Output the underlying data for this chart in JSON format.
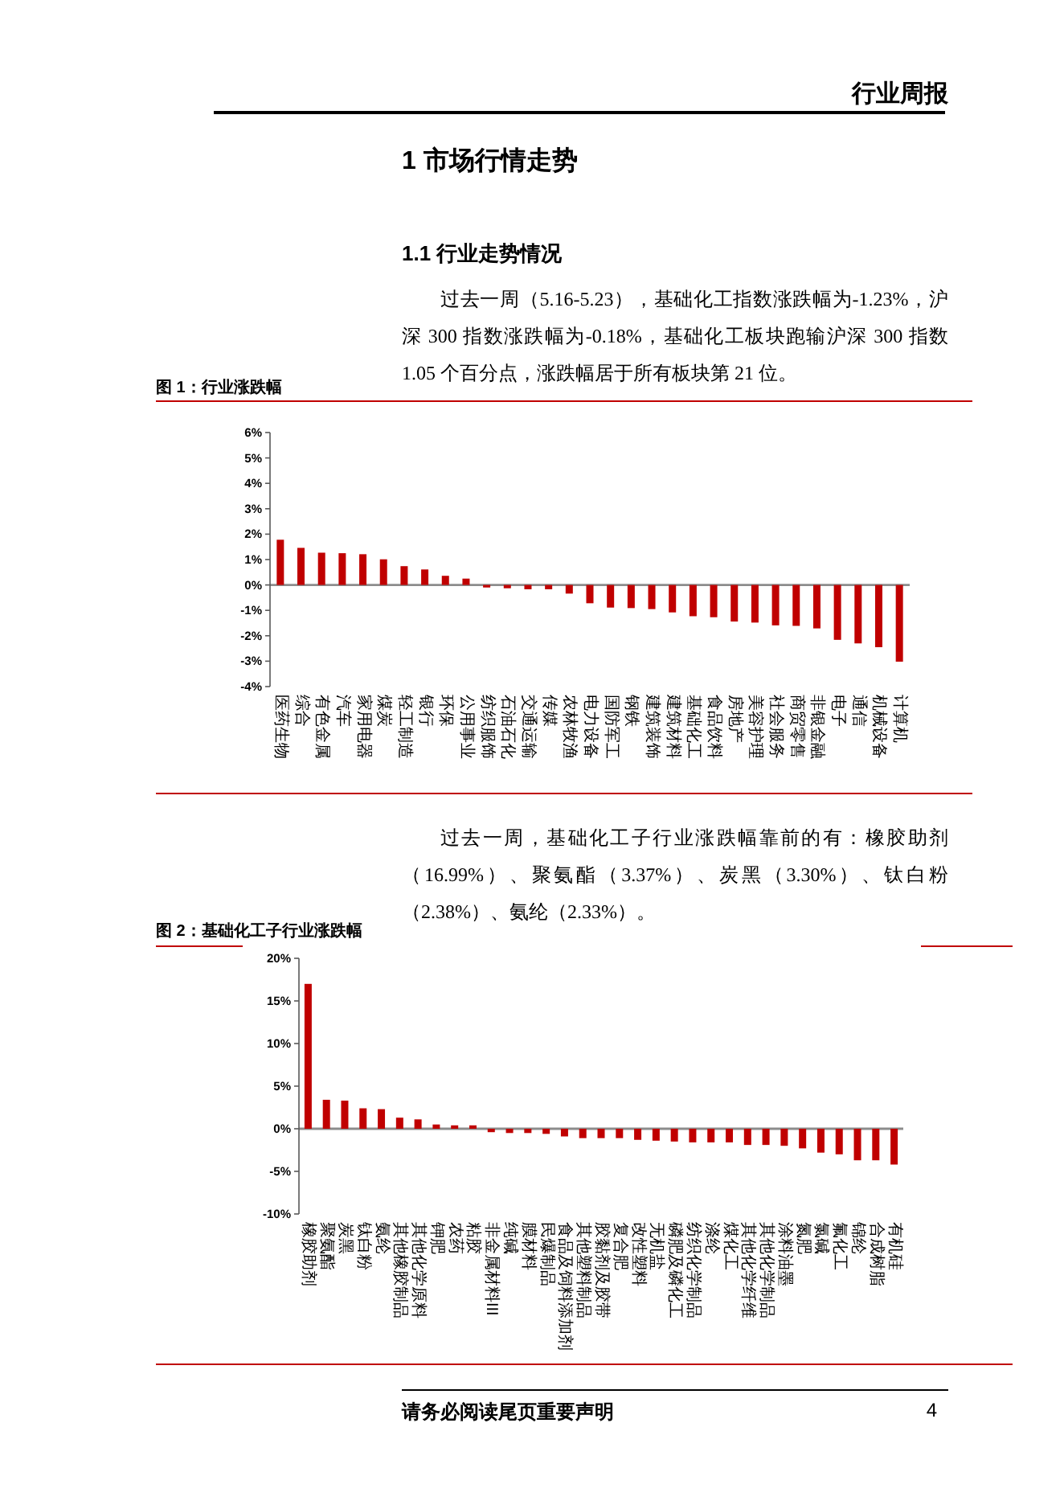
{
  "chart_data": [
    {
      "type": "bar",
      "title": "图 1：行业涨跌幅",
      "categories": [
        "医药生物",
        "综合",
        "有色金属",
        "汽车",
        "家用电器",
        "煤炭",
        "轻工制造",
        "银行",
        "环保",
        "公用事业",
        "纺织服饰",
        "石油石化",
        "交通运输",
        "传媒",
        "农林牧渔",
        "电力设备",
        "国防军工",
        "钢铁",
        "建筑装饰",
        "建筑材料",
        "基础化工",
        "食品饮料",
        "房地产",
        "美容护理",
        "社会服务",
        "商贸零售",
        "非银金融",
        "电子",
        "通信",
        "机械设备",
        "计算机"
      ],
      "values": [
        1.78,
        1.46,
        1.27,
        1.25,
        1.21,
        1.01,
        0.74,
        0.61,
        0.36,
        0.25,
        -0.1,
        -0.13,
        -0.17,
        -0.17,
        -0.34,
        -0.72,
        -0.89,
        -0.91,
        -0.95,
        -1.08,
        -1.23,
        -1.27,
        -1.44,
        -1.48,
        -1.59,
        -1.61,
        -1.71,
        -2.16,
        -2.3,
        -2.45,
        -3.02
      ],
      "color": "#c00000",
      "ylim": [
        -4,
        6
      ],
      "yticks": [
        {
          "value": -4,
          "label": "-4%"
        },
        {
          "value": -3,
          "label": "-3%"
        },
        {
          "value": -2,
          "label": "-2%"
        },
        {
          "value": -1,
          "label": "-1%"
        },
        {
          "value": 0,
          "label": "0%"
        },
        {
          "value": 1,
          "label": "1%"
        },
        {
          "value": 2,
          "label": "2%"
        },
        {
          "value": 3,
          "label": "3%"
        },
        {
          "value": 4,
          "label": "4%"
        },
        {
          "value": 5,
          "label": "5%"
        },
        {
          "value": 6,
          "label": "6%"
        }
      ],
      "annotations": [
        "行业周报",
        "1 市场行情走势",
        "1.1 行业走势情况",
        "过去一周（5.16-5.23），基础化工指数涨跌幅为-1.23%，沪深 300 指数涨跌幅为-0.18%，基础化工板块跑输沪深 300 指数 1.05 个百分点，涨跌幅居于所有板块第 21 位。"
      ]
    },
    {
      "type": "bar",
      "title": "图 2：基础化工子行业涨跌幅",
      "categories": [
        "橡胶助剂",
        "聚氨酯",
        "炭黑",
        "钛白粉",
        "氨纶",
        "其他橡胶制品",
        "其他化学原料",
        "钾肥",
        "农药",
        "粘胶",
        "非金属材料III",
        "纯碱",
        "膜材料",
        "民爆制品",
        "食品及饲料添加剂",
        "其他塑料制品",
        "胶黏剂及胶带",
        "复合肥",
        "改性塑料",
        "无机盐",
        "磷肥及磷化工",
        "纺织化学制品",
        "涤纶",
        "煤化工",
        "其他化学纤维",
        "其他化学制品",
        "涂料油墨",
        "氮肥",
        "氯碱",
        "氟化工",
        "锦纶",
        "合成树脂",
        "有机硅"
      ],
      "values": [
        17.0,
        3.4,
        3.3,
        2.4,
        2.3,
        1.3,
        1.1,
        0.5,
        0.4,
        0.4,
        -0.4,
        -0.5,
        -0.5,
        -0.6,
        -0.9,
        -1.1,
        -1.1,
        -1.1,
        -1.3,
        -1.4,
        -1.5,
        -1.6,
        -1.6,
        -1.6,
        -1.9,
        -1.9,
        -2.0,
        -2.3,
        -2.8,
        -3.0,
        -3.7,
        -3.7,
        -4.2
      ],
      "color": "#c00000",
      "ylim": [
        -10,
        20
      ],
      "yticks": [
        {
          "value": -10,
          "label": "-10%"
        },
        {
          "value": -5,
          "label": "-5%"
        },
        {
          "value": 0,
          "label": "0%"
        },
        {
          "value": 5,
          "label": "5%"
        },
        {
          "value": 10,
          "label": "10%"
        },
        {
          "value": 15,
          "label": "15%"
        },
        {
          "value": 20,
          "label": "20%"
        }
      ],
      "annotations": [
        "过去一周，基础化工子行业涨跌幅靠前的有：橡胶助剂（16.99%）、聚氨酯（3.37%）、炭黑（3.30%）、钛白粉（2.38%）、氨纶（2.33%）。",
        "请务必阅读尾页重要声明",
        "4"
      ]
    }
  ]
}
